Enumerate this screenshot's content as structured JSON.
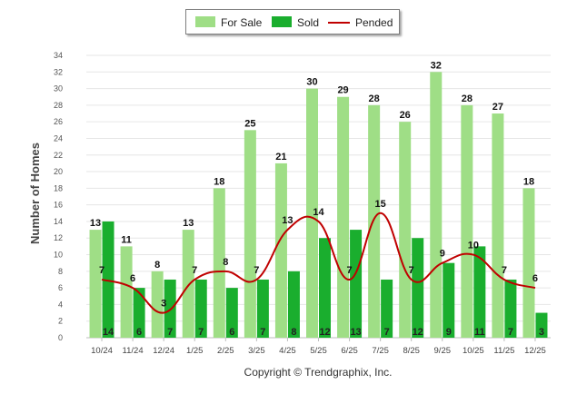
{
  "chart_data": {
    "type": "bar",
    "ylabel": "Number of Homes",
    "ylim": [
      0,
      34
    ],
    "yticks": [
      0,
      2,
      4,
      6,
      8,
      10,
      12,
      14,
      16,
      18,
      20,
      22,
      24,
      26,
      28,
      30,
      32,
      34
    ],
    "categories": [
      "10/24",
      "11/24",
      "12/24",
      "1/25",
      "2/25",
      "3/25",
      "4/25",
      "5/25",
      "6/25",
      "7/25",
      "8/25",
      "9/25",
      "10/25",
      "11/25",
      "12/25"
    ],
    "series": [
      {
        "name": "For Sale",
        "kind": "bar",
        "color": "#9fde86",
        "values": [
          13,
          11,
          8,
          13,
          18,
          25,
          21,
          30,
          29,
          28,
          26,
          32,
          28,
          27,
          18
        ]
      },
      {
        "name": "Sold",
        "kind": "bar",
        "color": "#1aae2e",
        "values": [
          14,
          6,
          7,
          7,
          6,
          7,
          8,
          12,
          13,
          7,
          12,
          9,
          11,
          7,
          3
        ]
      },
      {
        "name": "Pended",
        "kind": "line",
        "color": "#c00000",
        "values": [
          7,
          6,
          3,
          7,
          8,
          7,
          13,
          14,
          7,
          15,
          7,
          9,
          10,
          7,
          6
        ]
      }
    ],
    "legend_position": "top-center",
    "grid": true
  },
  "footer": {
    "copyright": "Copyright © Trendgraphix, Inc."
  }
}
